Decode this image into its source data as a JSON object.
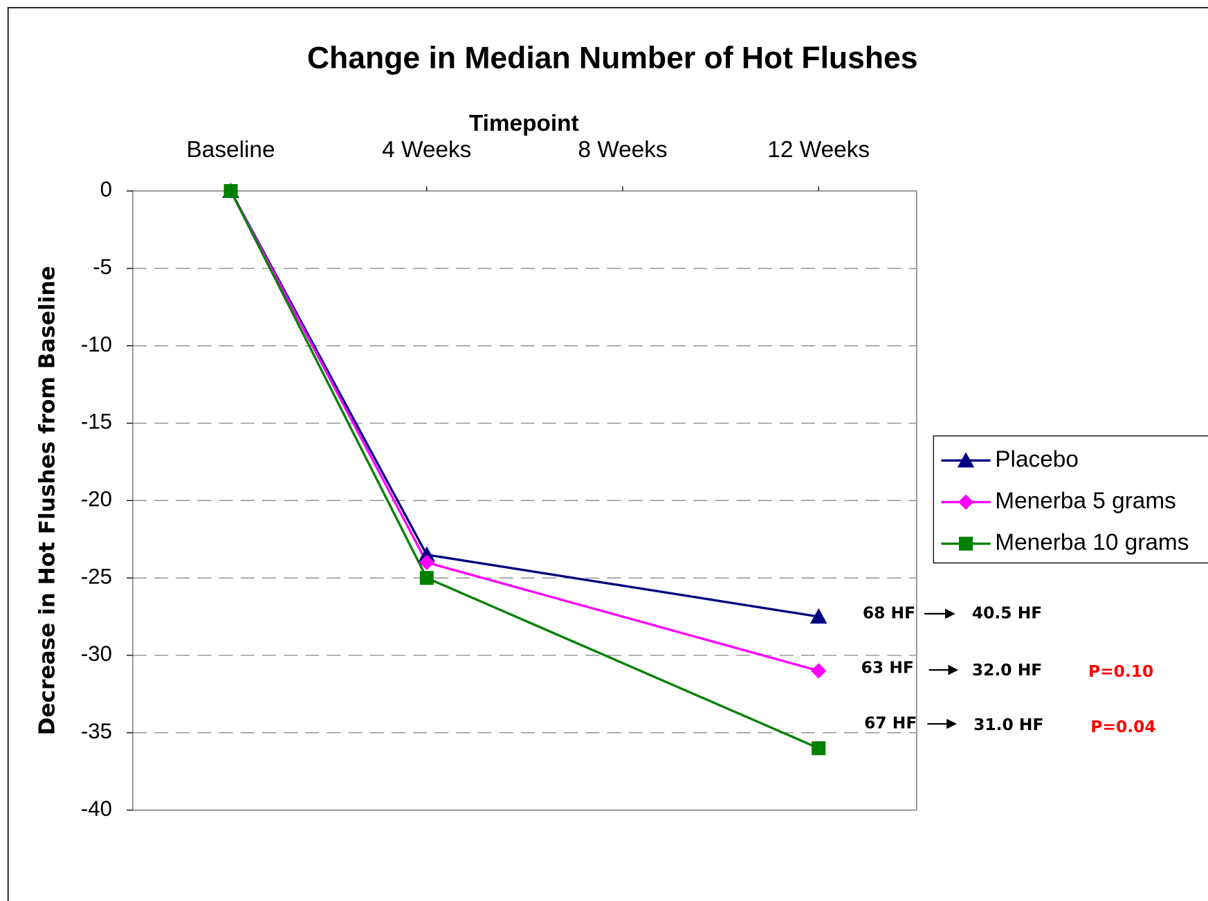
{
  "chart_data": {
    "type": "line",
    "title": "Change in Median Number of Hot Flushes",
    "x_label": "Timepoint",
    "y_label": "Decrease in Hot Flushes from Baseline",
    "xlim": [
      -2,
      14
    ],
    "xticks": [
      {
        "value": 0,
        "label": "Baseline"
      },
      {
        "value": 4,
        "label": "4 Weeks"
      },
      {
        "value": 8,
        "label": "8 Weeks"
      },
      {
        "value": 12,
        "label": "12 Weeks"
      }
    ],
    "ylim": [
      -40,
      0
    ],
    "yticks": [
      0,
      -5,
      -10,
      -15,
      -20,
      -25,
      -30,
      -35,
      -40
    ],
    "grid": true,
    "legend": "right",
    "series": [
      {
        "name": "Placebo",
        "color": "#000080",
        "marker": "triangle",
        "x": [
          0,
          4,
          12
        ],
        "values": [
          0,
          -23.5,
          -27.5
        ]
      },
      {
        "name": "Menerba 5 grams",
        "color": "#ff00ff",
        "marker": "diamond",
        "x": [
          0,
          4,
          12
        ],
        "values": [
          0,
          -24,
          -31
        ]
      },
      {
        "name": "Menerba 10 grams",
        "color": "#008000",
        "marker": "square",
        "x": [
          0,
          4,
          12
        ],
        "values": [
          0,
          -25,
          -36
        ]
      }
    ],
    "annotations": [
      {
        "from": "68 HF",
        "to": "40.5 HF"
      },
      {
        "from": "63 HF",
        "to": "32.0 HF",
        "p": "P=0.10"
      },
      {
        "from": "67 HF",
        "to": "31.0 HF",
        "p": "P=0.04"
      }
    ]
  }
}
